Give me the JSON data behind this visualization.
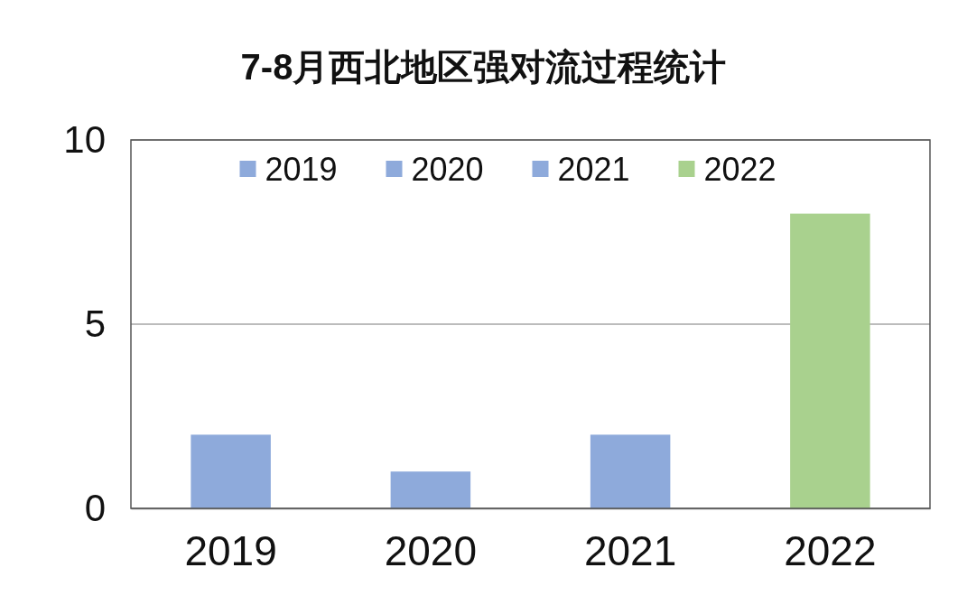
{
  "chart_data": {
    "type": "bar",
    "title": "7-8月西北地区强对流过程统计",
    "categories": [
      "2019",
      "2020",
      "2021",
      "2022"
    ],
    "series": [
      {
        "name": "2019",
        "color": "#8eaadb",
        "values": [
          2,
          null,
          null,
          null
        ]
      },
      {
        "name": "2020",
        "color": "#8eaadb",
        "values": [
          null,
          1,
          null,
          null
        ]
      },
      {
        "name": "2021",
        "color": "#8eaadb",
        "values": [
          null,
          null,
          2,
          null
        ]
      },
      {
        "name": "2022",
        "color": "#a9d18e",
        "values": [
          null,
          null,
          null,
          8
        ]
      }
    ],
    "ylim": [
      0,
      10
    ],
    "yticks": [
      0,
      5,
      10
    ],
    "grid": "y",
    "legend": "top"
  }
}
